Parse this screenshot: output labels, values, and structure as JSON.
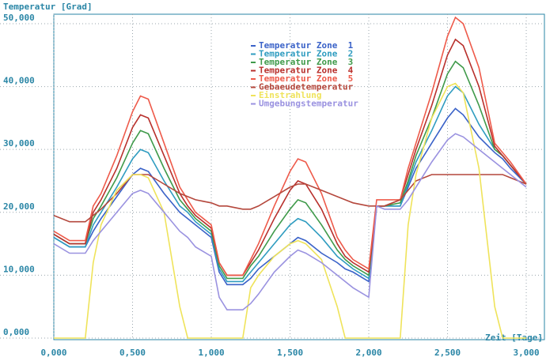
{
  "chart_data": {
    "type": "line",
    "ylabel": "Temperatur [Grad]",
    "xlabel": "Zeit [Tage]",
    "xlim": [
      0,
      3.05
    ],
    "ylim": [
      0,
      51
    ],
    "xticks": [
      {
        "value": 0,
        "label": "0,000"
      },
      {
        "value": 0.5,
        "label": "0,500"
      },
      {
        "value": 1,
        "label": "1,000"
      },
      {
        "value": 1.5,
        "label": "1,500"
      },
      {
        "value": 2,
        "label": "2,000"
      },
      {
        "value": 2.5,
        "label": "2,500"
      },
      {
        "value": 3,
        "label": "3,000"
      }
    ],
    "yticks": [
      {
        "value": 0,
        "label": "0,000"
      },
      {
        "value": 10,
        "label": "10,000"
      },
      {
        "value": 20,
        "label": "20,000"
      },
      {
        "value": 30,
        "label": "30,000"
      },
      {
        "value": 40,
        "label": "40,000"
      },
      {
        "value": 50,
        "label": "50,000"
      }
    ],
    "grid": true,
    "legend": "upper center",
    "x": [
      0,
      0.1,
      0.2,
      0.25,
      0.3,
      0.4,
      0.5,
      0.55,
      0.6,
      0.7,
      0.8,
      0.85,
      0.9,
      1.0,
      1.05,
      1.1,
      1.2,
      1.25,
      1.3,
      1.4,
      1.5,
      1.55,
      1.6,
      1.7,
      1.8,
      1.85,
      1.9,
      2.0,
      2.05,
      2.1,
      2.2,
      2.25,
      2.3,
      2.4,
      2.5,
      2.55,
      2.6,
      2.7,
      2.8,
      2.85,
      2.9,
      3.0
    ],
    "series": [
      {
        "name": "Temperatur Zone  1",
        "color": "#3a62c8",
        "values": [
          16,
          14.5,
          14.5,
          17,
          19,
          22.5,
          26,
          27,
          26.5,
          23,
          20,
          19,
          18,
          16,
          10.5,
          8.5,
          8.5,
          9.5,
          11,
          13,
          15,
          16,
          15.5,
          13.5,
          12,
          11,
          10.5,
          9,
          21,
          21,
          21,
          24,
          27,
          31,
          35,
          36.5,
          35.5,
          32,
          29.5,
          28.5,
          27,
          24.5
        ]
      },
      {
        "name": "Temperatur Zone  2",
        "color": "#2f9cc0",
        "values": [
          16,
          14.5,
          14.5,
          18,
          20,
          24,
          28.5,
          30,
          29.5,
          25,
          21,
          20,
          18.5,
          16.5,
          11,
          9,
          9,
          10.5,
          12,
          15,
          18,
          19,
          18.5,
          16,
          13,
          12,
          11,
          9.5,
          21,
          21,
          21,
          24.5,
          28,
          33,
          38.5,
          40,
          39,
          34,
          30,
          29,
          27.5,
          24.5
        ]
      },
      {
        "name": "Temperatur Zone  3",
        "color": "#3f9a4a",
        "values": [
          16.5,
          15,
          15,
          19,
          21,
          25.5,
          31,
          33,
          32.5,
          27,
          22,
          20.5,
          19,
          17,
          11.5,
          9.5,
          9.5,
          11.5,
          13,
          17,
          20.5,
          22,
          21.5,
          18,
          14,
          12.5,
          11.5,
          10,
          21,
          21,
          21.5,
          25,
          29,
          35,
          42,
          44,
          43,
          37,
          30,
          29,
          27.5,
          24.5
        ]
      },
      {
        "name": "Temperatur Zone  4",
        "color": "#b8302c",
        "values": [
          16.5,
          15,
          15,
          20,
          22,
          27,
          33.5,
          35.5,
          35,
          29,
          23,
          21,
          19.5,
          17.5,
          12,
          10,
          10,
          12,
          14,
          19,
          23.5,
          25,
          24.5,
          20.5,
          15,
          13,
          12,
          10.5,
          21,
          21,
          22,
          26,
          30,
          37,
          45,
          47.5,
          46.5,
          40,
          30.5,
          29,
          27.5,
          24.5
        ]
      },
      {
        "name": "Temperatur Zone  5",
        "color": "#ee5a4a",
        "values": [
          17,
          15.5,
          15.5,
          21,
          23,
          29,
          36,
          38.5,
          38,
          31,
          24,
          22,
          20,
          18,
          12,
          10,
          10,
          12.5,
          15,
          21,
          26.5,
          28.5,
          28,
          23,
          16,
          14,
          12.5,
          11,
          22,
          22,
          22,
          27,
          31,
          39,
          48,
          51,
          50,
          43,
          31,
          29.5,
          28,
          24.5
        ]
      },
      {
        "name": "Gebaeudetemperatur",
        "color": "#b4473c",
        "values": [
          19.5,
          18.5,
          18.5,
          19.5,
          20.5,
          23,
          26,
          26,
          26,
          24.5,
          23,
          22.5,
          22,
          21.5,
          21,
          21,
          20.5,
          20.5,
          21,
          22.5,
          24,
          24.5,
          24.5,
          23.5,
          22.5,
          22,
          21.5,
          21,
          21,
          21,
          22,
          23.5,
          25,
          26,
          26,
          26,
          26,
          26,
          26,
          26,
          25.5,
          24.5
        ]
      },
      {
        "name": "Einstrahlung",
        "color": "#efe35a",
        "values": [
          0,
          0,
          0,
          12,
          18,
          23.5,
          26,
          26,
          25.5,
          20,
          5,
          0,
          0,
          0,
          0,
          0,
          0,
          8,
          10,
          13,
          15,
          15.5,
          15,
          12.5,
          5,
          0,
          0,
          0,
          0,
          0,
          0,
          18,
          26,
          35,
          40,
          40.5,
          39,
          27,
          5,
          0,
          0,
          0
        ]
      },
      {
        "name": "Umgebungstemperatur",
        "color": "#9a92e0",
        "values": [
          15,
          13.5,
          13.5,
          15.5,
          17,
          20,
          23,
          23.5,
          23,
          20,
          17,
          16,
          14.5,
          13,
          6.5,
          4.5,
          4.5,
          5.5,
          7,
          10.5,
          13,
          14,
          13.5,
          12,
          10,
          9,
          8,
          6.5,
          21,
          20.5,
          20.5,
          22,
          24,
          28,
          31.5,
          32.5,
          32,
          30,
          28,
          27,
          26,
          24
        ]
      }
    ]
  }
}
